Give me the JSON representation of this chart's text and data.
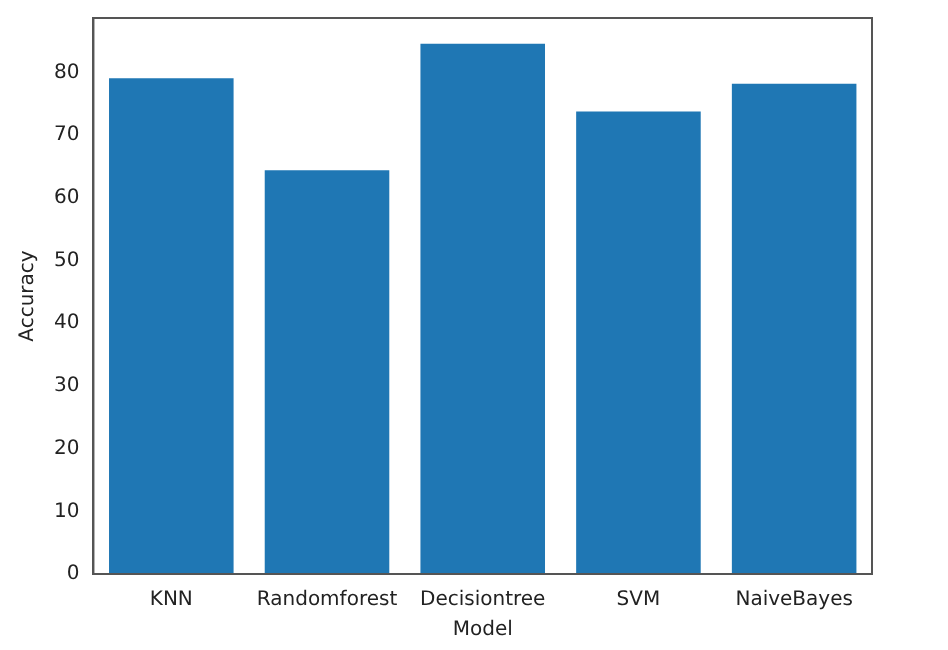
{
  "chart_data": {
    "type": "bar",
    "xlabel": "Model",
    "ylabel": "Accuracy",
    "categories": [
      "KNN",
      "Randomforest",
      "Decisiontree",
      "SVM",
      "NaiveBayes"
    ],
    "values": [
      79.1,
      64.4,
      84.6,
      73.8,
      78.2
    ],
    "color": "#1f77b4",
    "ylim": [
      0,
      88.7
    ],
    "yticks": [
      0,
      10,
      20,
      30,
      40,
      50,
      60,
      70,
      80
    ],
    "grid": false,
    "legend": false
  }
}
